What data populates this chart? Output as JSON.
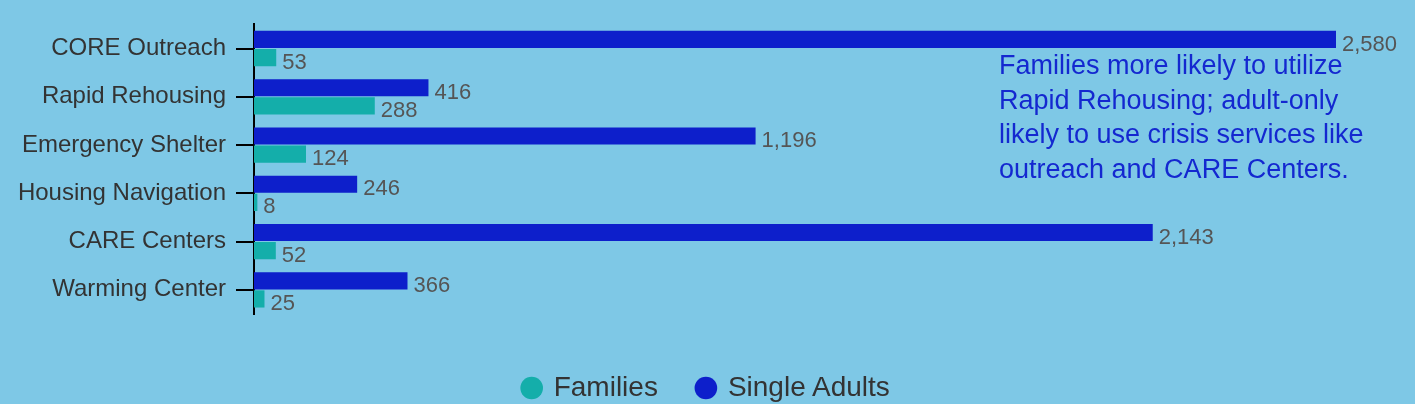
{
  "chart_data": {
    "type": "bar",
    "orientation": "horizontal",
    "categories": [
      "CORE Outreach",
      "Rapid Rehousing",
      "Emergency Shelter",
      "Housing Navigation",
      "CARE Centers",
      "Warming Center"
    ],
    "series": [
      {
        "name": "Families",
        "color": "#14aeaa",
        "values": [
          53,
          288,
          124,
          8,
          52,
          25
        ],
        "value_labels": [
          "53",
          "288",
          "124",
          "8",
          "52",
          "25"
        ]
      },
      {
        "name": "Single Adults",
        "color": "#0d1fcb",
        "values": [
          2580,
          416,
          1196,
          246,
          2143,
          366
        ],
        "value_labels": [
          "2,580",
          "416",
          "1,196",
          "246",
          "2,143",
          "366"
        ]
      }
    ],
    "legend": "bottom",
    "annotations": [
      "Families more likely to utilize Rapid Rehousing; adult-only likely to use crisis services like outreach and CARE Centers."
    ]
  }
}
